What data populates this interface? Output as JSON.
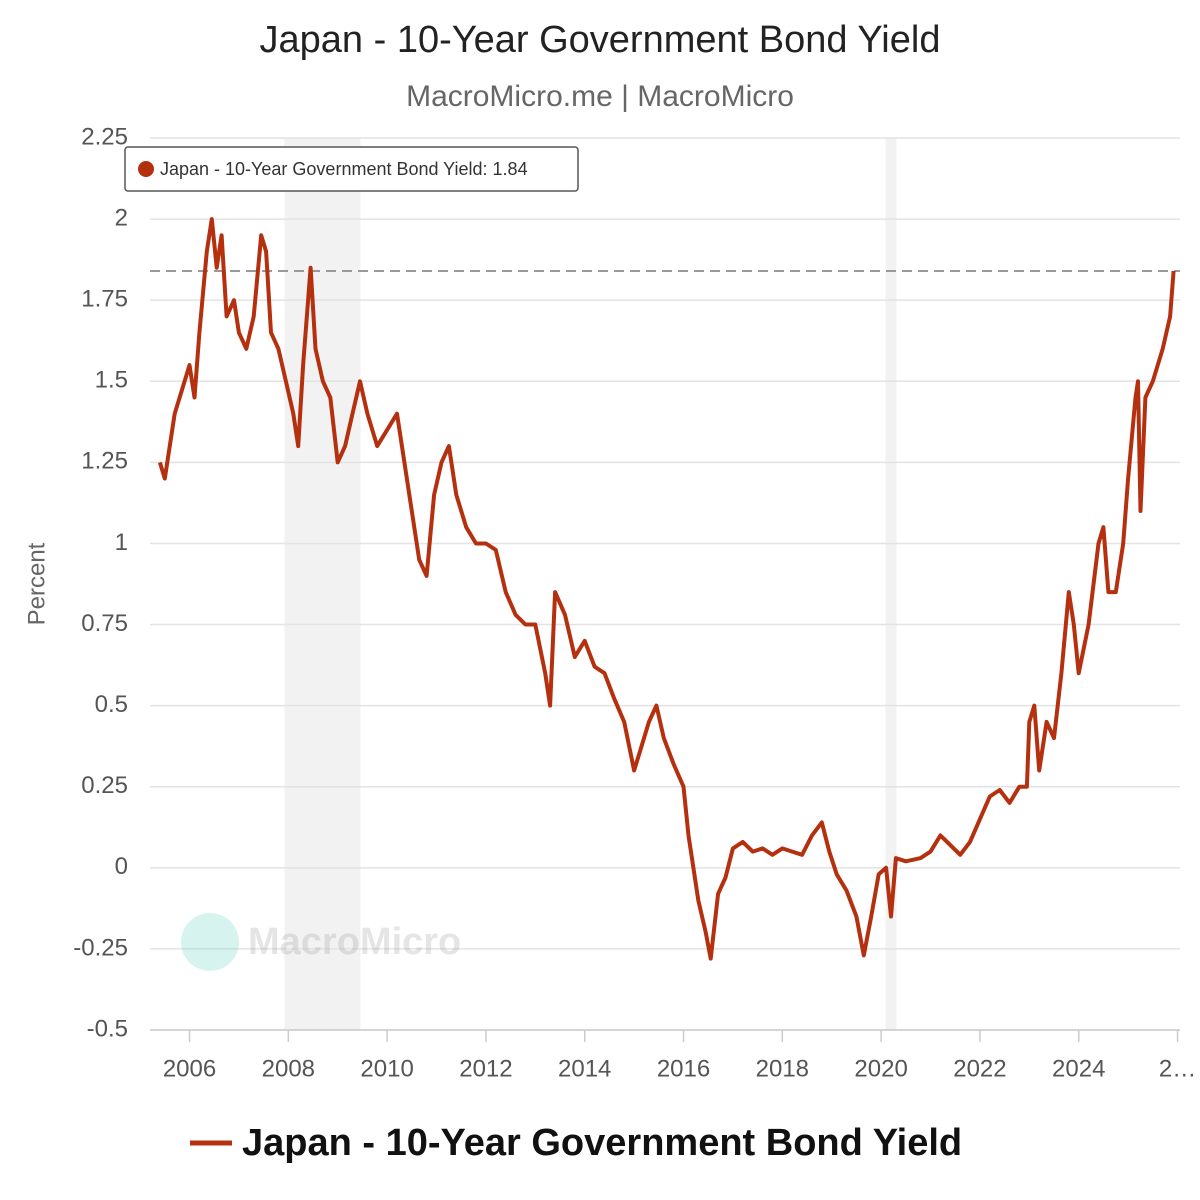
{
  "chart_data": {
    "type": "line",
    "title": "Japan - 10-Year Government Bond Yield",
    "subtitle": "MacroMicro.me | MacroMicro",
    "y_label": "Percent",
    "watermark": "MacroMicro",
    "tooltip": "Japan - 10-Year Government Bond Yield: 1.84",
    "reference_line": 1.84,
    "shaded_regions": [
      [
        2007.92,
        2009.46
      ],
      [
        2020.09,
        2020.31
      ]
    ],
    "xlim": [
      2005.2,
      2026.05
    ],
    "ylim": [
      -0.5,
      2.25
    ],
    "xticks": [
      2006,
      2008,
      2010,
      2012,
      2014,
      2016,
      2018,
      2020,
      2022,
      2024,
      {
        "value": 2026,
        "label": "2…"
      }
    ],
    "yticks": [
      -0.5,
      -0.25,
      0,
      0.25,
      0.5,
      0.75,
      1,
      1.25,
      1.5,
      1.75,
      2,
      2.25
    ],
    "grid": true,
    "legend": "bottom",
    "series": [
      {
        "name": "Japan - 10-Year Government Bond Yield",
        "color": "#b5300f",
        "x": [
          2005.4,
          2005.5,
          2005.7,
          2005.9,
          2006.0,
          2006.1,
          2006.2,
          2006.35,
          2006.45,
          2006.55,
          2006.65,
          2006.75,
          2006.9,
          2007.0,
          2007.15,
          2007.3,
          2007.45,
          2007.55,
          2007.65,
          2007.8,
          2007.95,
          2008.1,
          2008.2,
          2008.3,
          2008.45,
          2008.55,
          2008.7,
          2008.85,
          2009.0,
          2009.15,
          2009.3,
          2009.45,
          2009.6,
          2009.8,
          2010.0,
          2010.2,
          2010.35,
          2010.5,
          2010.65,
          2010.8,
          2010.95,
          2011.1,
          2011.25,
          2011.4,
          2011.6,
          2011.8,
          2012.0,
          2012.2,
          2012.4,
          2012.6,
          2012.8,
          2013.0,
          2013.2,
          2013.3,
          2013.4,
          2013.6,
          2013.8,
          2014.0,
          2014.2,
          2014.4,
          2014.6,
          2014.8,
          2015.0,
          2015.1,
          2015.3,
          2015.45,
          2015.6,
          2015.8,
          2016.0,
          2016.1,
          2016.3,
          2016.45,
          2016.55,
          2016.7,
          2016.85,
          2017.0,
          2017.2,
          2017.4,
          2017.6,
          2017.8,
          2018.0,
          2018.2,
          2018.4,
          2018.6,
          2018.8,
          2018.95,
          2019.1,
          2019.3,
          2019.5,
          2019.65,
          2019.8,
          2019.95,
          2020.1,
          2020.2,
          2020.3,
          2020.5,
          2020.8,
          2021.0,
          2021.2,
          2021.4,
          2021.6,
          2021.8,
          2022.0,
          2022.2,
          2022.4,
          2022.6,
          2022.8,
          2022.95,
          2023.0,
          2023.1,
          2023.2,
          2023.35,
          2023.5,
          2023.65,
          2023.8,
          2023.9,
          2024.0,
          2024.2,
          2024.4,
          2024.5,
          2024.6,
          2024.75,
          2024.9,
          2025.0,
          2025.15,
          2025.2,
          2025.25,
          2025.35,
          2025.5,
          2025.7,
          2025.85,
          2025.92
        ],
        "values": [
          1.25,
          1.2,
          1.4,
          1.5,
          1.55,
          1.45,
          1.65,
          1.9,
          2.0,
          1.85,
          1.95,
          1.7,
          1.75,
          1.65,
          1.6,
          1.7,
          1.95,
          1.9,
          1.65,
          1.6,
          1.5,
          1.4,
          1.3,
          1.55,
          1.85,
          1.6,
          1.5,
          1.45,
          1.25,
          1.3,
          1.4,
          1.5,
          1.4,
          1.3,
          1.35,
          1.4,
          1.25,
          1.1,
          0.95,
          0.9,
          1.15,
          1.25,
          1.3,
          1.15,
          1.05,
          1.0,
          1.0,
          0.98,
          0.85,
          0.78,
          0.75,
          0.75,
          0.6,
          0.5,
          0.85,
          0.78,
          0.65,
          0.7,
          0.62,
          0.6,
          0.52,
          0.45,
          0.3,
          0.35,
          0.45,
          0.5,
          0.4,
          0.32,
          0.25,
          0.1,
          -0.1,
          -0.2,
          -0.28,
          -0.08,
          -0.03,
          0.06,
          0.08,
          0.05,
          0.06,
          0.04,
          0.06,
          0.05,
          0.04,
          0.1,
          0.14,
          0.05,
          -0.02,
          -0.07,
          -0.15,
          -0.27,
          -0.15,
          -0.02,
          0.0,
          -0.15,
          0.03,
          0.02,
          0.03,
          0.05,
          0.1,
          0.07,
          0.04,
          0.08,
          0.15,
          0.22,
          0.24,
          0.2,
          0.25,
          0.25,
          0.45,
          0.5,
          0.3,
          0.45,
          0.4,
          0.6,
          0.85,
          0.75,
          0.6,
          0.75,
          1.0,
          1.05,
          0.85,
          0.85,
          1.0,
          1.2,
          1.45,
          1.5,
          1.1,
          1.45,
          1.5,
          1.6,
          1.7,
          1.84
        ]
      }
    ]
  }
}
